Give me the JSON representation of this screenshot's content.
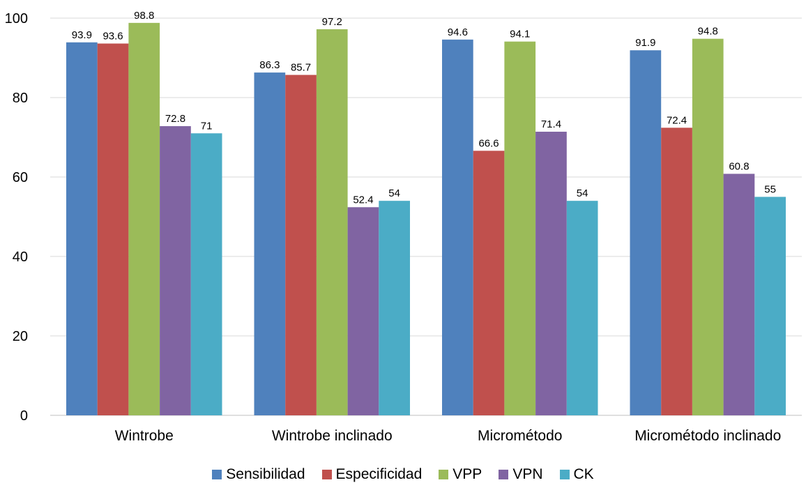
{
  "chart_data": {
    "type": "bar",
    "categories": [
      "Wintrobe",
      "Wintrobe inclinado",
      "Micrométodo",
      "Micrométodo inclinado"
    ],
    "series": [
      {
        "name": "Sensibilidad",
        "color": "#4F81BD",
        "values": [
          93.9,
          86.3,
          94.6,
          91.9
        ]
      },
      {
        "name": "Especificidad",
        "color": "#C0504D",
        "values": [
          93.6,
          85.7,
          66.6,
          72.4
        ]
      },
      {
        "name": "VPP",
        "color": "#9BBB59",
        "values": [
          98.8,
          97.2,
          94.1,
          94.8
        ]
      },
      {
        "name": "VPN",
        "color": "#8064A2",
        "values": [
          72.8,
          52.4,
          71.4,
          60.8
        ]
      },
      {
        "name": "CK",
        "color": "#4BACC6",
        "values": [
          71,
          54,
          54,
          55
        ]
      }
    ],
    "title": "",
    "xlabel": "",
    "ylabel": "",
    "ylim": [
      0,
      100
    ],
    "yticks": [
      0,
      20,
      40,
      60,
      80,
      100
    ],
    "grid": true,
    "legend": "bottom"
  }
}
